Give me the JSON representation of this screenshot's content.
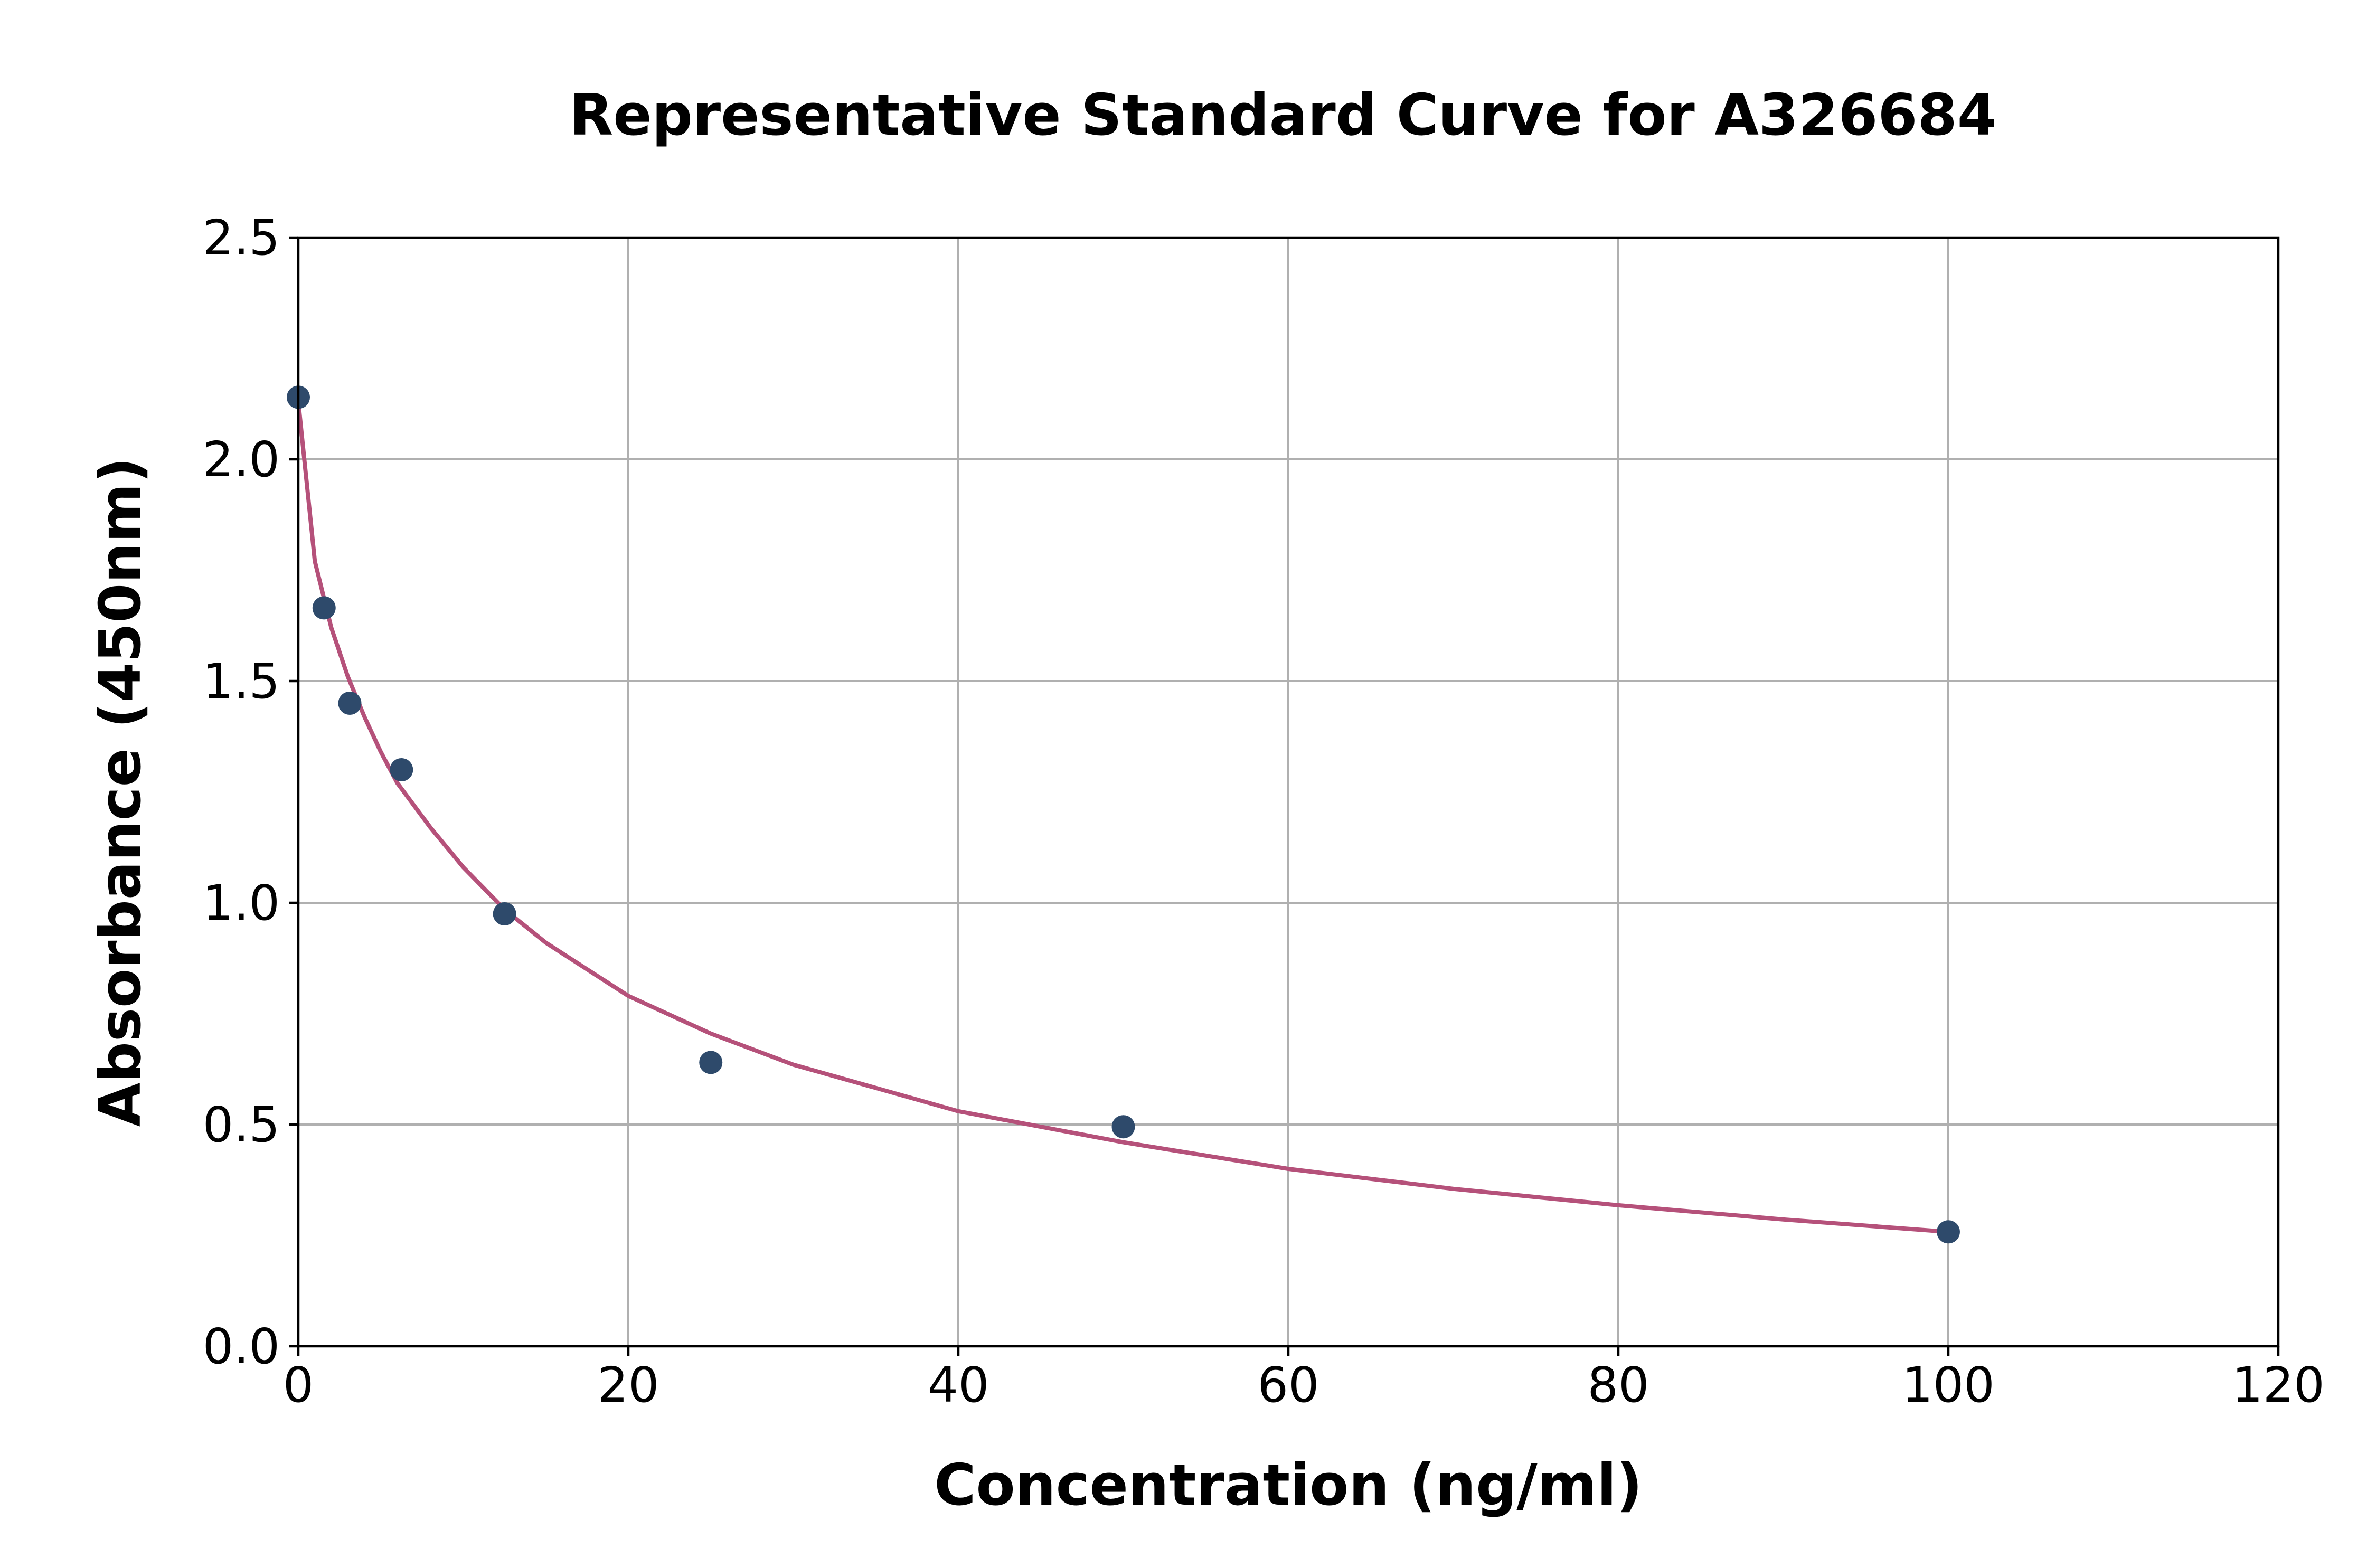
{
  "chart_data": {
    "type": "scatter",
    "title": "Representative Standard Curve for A326684",
    "xlabel": "Concentration (ng/ml)",
    "ylabel": "Absorbance (450nm)",
    "xlim": [
      0,
      120
    ],
    "ylim": [
      0,
      2.5
    ],
    "x_ticks": [
      "0",
      "20",
      "40",
      "60",
      "80",
      "100",
      "120"
    ],
    "y_ticks": [
      "0.0",
      "0.5",
      "1.0",
      "1.5",
      "2.0",
      "2.5"
    ],
    "grid": true,
    "colors": {
      "points": "#2e4a6b",
      "curve": "#b5517a"
    },
    "points": {
      "x": [
        0,
        1.56,
        3.12,
        6.25,
        12.5,
        25,
        50,
        100
      ],
      "y": [
        2.14,
        1.665,
        1.45,
        1.3,
        0.975,
        0.64,
        0.495,
        0.258
      ]
    },
    "fit_curve": {
      "x": [
        0,
        1,
        2,
        3,
        4,
        5,
        6,
        8,
        10,
        12.5,
        15,
        20,
        25,
        30,
        40,
        50,
        60,
        70,
        80,
        90,
        100
      ],
      "y": [
        2.13,
        1.77,
        1.62,
        1.51,
        1.42,
        1.34,
        1.27,
        1.17,
        1.08,
        0.985,
        0.91,
        0.79,
        0.705,
        0.635,
        0.53,
        0.46,
        0.4,
        0.355,
        0.318,
        0.286,
        0.258
      ]
    }
  }
}
